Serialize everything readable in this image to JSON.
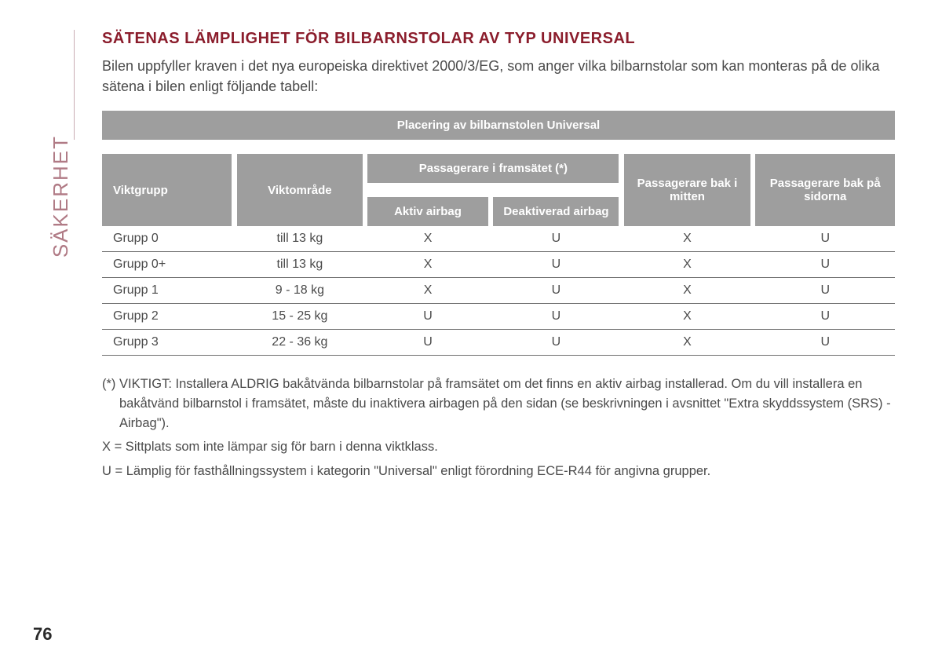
{
  "side_label": "SÄKERHET",
  "title": "SÄTENAS LÄMPLIGHET FÖR BILBARNSTOLAR AV TYP UNIVERSAL",
  "intro": "Bilen uppfyller kraven i det nya europeiska direktivet 2000/3/EG, som anger vilka bilbarnstolar som kan monteras på de olika sätena i bilen enligt följande tabell:",
  "table": {
    "top_header": "Placering av bilbarnstolen Universal",
    "mid_header": "Passagerare i framsätet (*)",
    "cols": {
      "group": "Viktgrupp",
      "range": "Viktområde",
      "active": "Aktiv airbag",
      "deact": "Deaktiverad airbag",
      "rear_mid": "Passagerare bak i mitten",
      "rear_side": "Passagerare bak på sidorna"
    },
    "rows": [
      {
        "group": "Grupp 0",
        "range": "till 13 kg",
        "a": "X",
        "b": "U",
        "c": "X",
        "d": "U"
      },
      {
        "group": "Grupp 0+",
        "range": "till 13 kg",
        "a": "X",
        "b": "U",
        "c": "X",
        "d": "U"
      },
      {
        "group": "Grupp 1",
        "range": "9 - 18 kg",
        "a": "X",
        "b": "U",
        "c": "X",
        "d": "U"
      },
      {
        "group": "Grupp 2",
        "range": "15 - 25 kg",
        "a": "U",
        "b": "U",
        "c": "X",
        "d": "U"
      },
      {
        "group": "Grupp 3",
        "range": "22 - 36 kg",
        "a": "U",
        "b": "U",
        "c": "X",
        "d": "U"
      }
    ],
    "header_bg": "#9e9e9e",
    "header_fg": "#ffffff",
    "row_border": "#6f6f6f"
  },
  "notes": {
    "n1": "(*) VIKTIGT: Installera ALDRIG bakåtvända bilbarnstolar på framsätet om det finns en aktiv airbag installerad. Om du vill installera en bakåtvänd bilbarnstol i framsätet, måste du inaktivera airbagen på den sidan (se beskrivningen i avsnittet \"Extra skyddssystem (SRS) - Airbag\").",
    "n2": "X = Sittplats som inte lämpar sig för barn i denna viktklass.",
    "n3": "U = Lämplig för fasthållningssystem i kategorin \"Universal\" enligt förordning ECE-R44 för angivna grupper."
  },
  "page_number": "76",
  "colors": {
    "title": "#8b1d2c",
    "side": "#b07a85",
    "text": "#4a4a4a",
    "bg": "#ffffff"
  }
}
